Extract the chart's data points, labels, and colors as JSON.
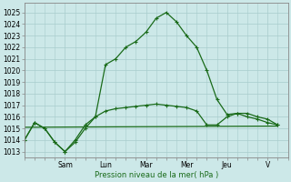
{
  "background_color": "#cce8e8",
  "grid_color": "#a8cccc",
  "line_color": "#1a6b1a",
  "xlabel": "Pression niveau de la mer( hPa )",
  "ylim": [
    1012.5,
    1025.8
  ],
  "yticks": [
    1013,
    1014,
    1015,
    1016,
    1017,
    1018,
    1019,
    1020,
    1021,
    1022,
    1023,
    1024,
    1025
  ],
  "day_labels": [
    "Sam",
    "Lun",
    "Mar",
    "Mer",
    "Jeu",
    "V"
  ],
  "day_tick_x": [
    4,
    8,
    12,
    16,
    20,
    24
  ],
  "xlim": [
    0,
    26
  ],
  "minor_x_step": 1,
  "series1": {
    "x": [
      0,
      1,
      2,
      3,
      4,
      5,
      6,
      7,
      8,
      9,
      10,
      11,
      12,
      13,
      14,
      15,
      16,
      17,
      18,
      19,
      20,
      21,
      22,
      23,
      24,
      25
    ],
    "y": [
      1014.0,
      1015.5,
      1015.0,
      1013.8,
      1013.0,
      1013.8,
      1015.0,
      1016.0,
      1020.5,
      1021.0,
      1022.0,
      1022.5,
      1023.3,
      1024.5,
      1025.0,
      1024.2,
      1023.0,
      1022.0,
      1020.0,
      1017.5,
      1016.2,
      1016.3,
      1016.0,
      1015.8,
      1015.5,
      1015.3
    ]
  },
  "series2": {
    "x": [
      0,
      1,
      2,
      3,
      4,
      5,
      6,
      7,
      8,
      9,
      10,
      11,
      12,
      13,
      14,
      15,
      16,
      17,
      18,
      19,
      20,
      21,
      22,
      23,
      24,
      25
    ],
    "y": [
      1014.0,
      1015.5,
      1015.0,
      1013.8,
      1013.0,
      1014.0,
      1015.3,
      1016.0,
      1016.5,
      1016.7,
      1016.8,
      1016.9,
      1017.0,
      1017.1,
      1017.0,
      1016.9,
      1016.8,
      1016.5,
      1015.3,
      1015.3,
      1016.0,
      1016.3,
      1016.3,
      1016.0,
      1015.8,
      1015.3
    ]
  },
  "series3": {
    "x": [
      0,
      25
    ],
    "y": [
      1015.1,
      1015.2
    ]
  },
  "marker": "+"
}
